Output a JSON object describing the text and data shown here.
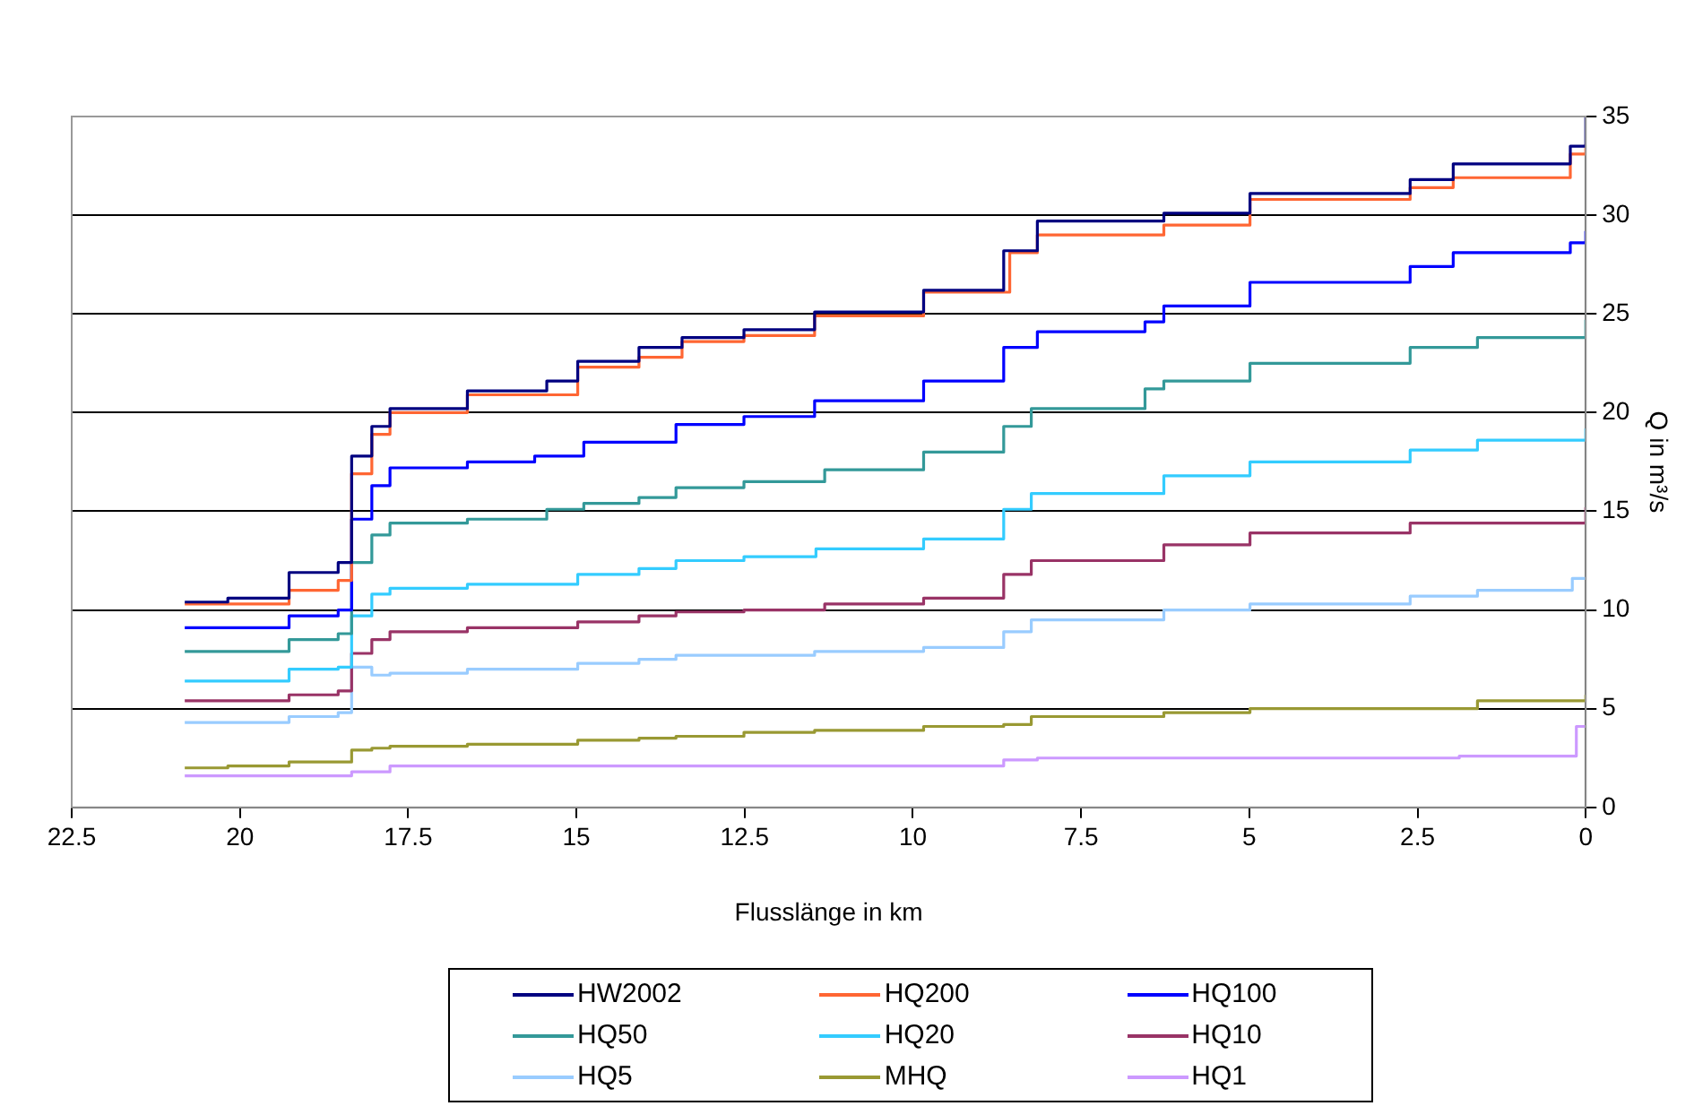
{
  "chart_data": {
    "type": "step",
    "xlabel": "Flusslänge in km",
    "ylabel": "Q in m³/s",
    "xlim": [
      22.5,
      0
    ],
    "xticks": [
      22.5,
      20,
      17.5,
      15,
      12.5,
      10,
      7.5,
      5,
      2.5,
      0
    ],
    "ylim": [
      0,
      35
    ],
    "yticks": [
      0,
      5,
      10,
      15,
      20,
      25,
      30,
      35
    ],
    "grid": "y",
    "legend": "bottom",
    "marker": "none",
    "line_style": "solid",
    "series": [
      {
        "name": "HW2002",
        "color": "#000080",
        "x": [
          20.82,
          20.18,
          19.27,
          18.54,
          18.34,
          18.04,
          17.77,
          16.62,
          15.44,
          14.98,
          14.07,
          13.43,
          12.51,
          11.46,
          9.84,
          8.65,
          8.15,
          6.27,
          4.99,
          2.61,
          1.97,
          0.23,
          0
        ],
        "values": [
          10.4,
          10.6,
          11.9,
          12.4,
          17.8,
          19.3,
          20.2,
          21.1,
          21.6,
          22.6,
          23.3,
          23.8,
          24.2,
          25.1,
          26.2,
          28.2,
          29.7,
          30.1,
          31.1,
          31.8,
          32.6,
          33.5,
          35.0
        ]
      },
      {
        "name": "HQ200",
        "color": "#ff6633",
        "x": [
          20.82,
          19.27,
          18.54,
          18.34,
          18.04,
          17.77,
          16.62,
          14.98,
          14.07,
          13.43,
          12.51,
          11.46,
          9.84,
          8.56,
          8.15,
          6.27,
          4.99,
          2.61,
          1.97,
          0.23,
          0
        ],
        "values": [
          10.3,
          11.0,
          11.5,
          16.9,
          18.9,
          20.0,
          20.9,
          22.3,
          22.8,
          23.6,
          23.9,
          24.9,
          26.1,
          28.1,
          29.0,
          29.5,
          30.8,
          31.4,
          31.9,
          33.1,
          33.6
        ]
      },
      {
        "name": "HQ100",
        "color": "#0000ff",
        "x": [
          20.82,
          19.27,
          18.54,
          18.34,
          18.04,
          17.77,
          16.62,
          15.62,
          14.89,
          13.52,
          12.51,
          11.46,
          9.84,
          8.65,
          8.15,
          6.55,
          6.27,
          4.99,
          2.61,
          1.97,
          0.23,
          0
        ],
        "values": [
          9.1,
          9.7,
          10.0,
          14.6,
          16.3,
          17.2,
          17.5,
          17.8,
          18.5,
          19.4,
          19.8,
          20.6,
          21.6,
          23.3,
          24.1,
          24.6,
          25.4,
          26.6,
          27.4,
          28.1,
          28.6,
          29.2
        ]
      },
      {
        "name": "HQ50",
        "color": "#339999",
        "x": [
          20.82,
          19.27,
          18.54,
          18.34,
          18.04,
          17.77,
          16.62,
          15.44,
          14.89,
          14.07,
          13.52,
          12.51,
          11.31,
          9.84,
          8.65,
          8.24,
          6.55,
          6.27,
          4.99,
          2.61,
          1.61,
          0
        ],
        "values": [
          7.9,
          8.5,
          8.8,
          12.4,
          13.8,
          14.4,
          14.6,
          15.1,
          15.4,
          15.7,
          16.2,
          16.5,
          17.1,
          18.0,
          19.3,
          20.2,
          21.2,
          21.6,
          22.5,
          23.3,
          23.8,
          24.7
        ]
      },
      {
        "name": "HQ20",
        "color": "#33ccff",
        "x": [
          20.82,
          19.27,
          18.54,
          18.34,
          18.04,
          17.77,
          16.62,
          14.98,
          14.07,
          13.52,
          12.51,
          11.44,
          9.84,
          8.65,
          8.24,
          6.27,
          4.99,
          2.61,
          1.61,
          0
        ],
        "values": [
          6.4,
          7.0,
          7.1,
          9.7,
          10.8,
          11.1,
          11.3,
          11.8,
          12.1,
          12.5,
          12.7,
          13.1,
          13.6,
          15.1,
          15.9,
          16.8,
          17.5,
          18.1,
          18.6,
          19.2
        ]
      },
      {
        "name": "HQ10",
        "color": "#993366",
        "x": [
          20.82,
          19.27,
          18.54,
          18.34,
          18.04,
          17.77,
          16.62,
          14.98,
          14.07,
          13.52,
          12.51,
          11.31,
          9.84,
          8.65,
          8.24,
          6.27,
          4.99,
          2.61,
          0
        ],
        "values": [
          5.4,
          5.7,
          5.9,
          7.8,
          8.5,
          8.9,
          9.1,
          9.4,
          9.7,
          9.9,
          10.0,
          10.3,
          10.6,
          11.8,
          12.5,
          13.3,
          13.9,
          14.4,
          15.2
        ]
      },
      {
        "name": "HQ5",
        "color": "#99ccff",
        "x": [
          20.82,
          19.27,
          18.54,
          18.34,
          18.04,
          17.77,
          16.62,
          14.98,
          14.07,
          13.52,
          11.46,
          9.84,
          8.65,
          8.24,
          6.27,
          4.99,
          2.61,
          1.61,
          0.2,
          0
        ],
        "values": [
          4.3,
          4.6,
          4.8,
          7.1,
          6.7,
          6.8,
          7.0,
          7.3,
          7.5,
          7.7,
          7.9,
          8.1,
          8.9,
          9.5,
          10.0,
          10.3,
          10.7,
          11.0,
          11.6,
          11.6
        ]
      },
      {
        "name": "MHQ",
        "color": "#999933",
        "x": [
          20.82,
          20.18,
          19.27,
          18.34,
          18.04,
          17.77,
          16.62,
          14.98,
          14.07,
          13.52,
          12.51,
          11.46,
          9.84,
          8.65,
          8.24,
          6.27,
          4.99,
          1.61,
          0
        ],
        "values": [
          2.0,
          2.1,
          2.3,
          2.9,
          3.0,
          3.1,
          3.2,
          3.4,
          3.5,
          3.6,
          3.8,
          3.9,
          4.1,
          4.2,
          4.6,
          4.8,
          5.0,
          5.4,
          5.7
        ]
      },
      {
        "name": "HQ1",
        "color": "#cc99ff",
        "x": [
          20.82,
          18.34,
          17.77,
          13.43,
          8.65,
          8.15,
          1.88,
          0.14,
          0
        ],
        "values": [
          1.6,
          1.8,
          2.1,
          2.1,
          2.4,
          2.5,
          2.6,
          4.1,
          4.1
        ]
      }
    ]
  }
}
